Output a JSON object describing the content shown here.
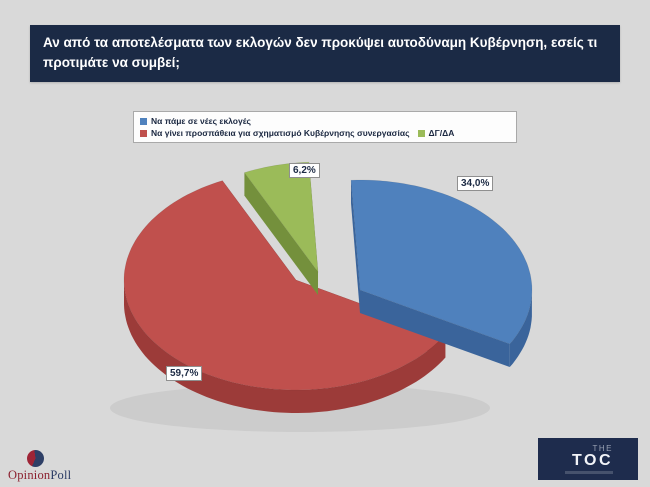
{
  "header": {
    "title": "Αν από τα αποτελέσματα των εκλογών δεν προκύψει αυτοδύναμη Κυβέρνηση, εσείς τι προτιμάτε να συμβεί;"
  },
  "chart_data": {
    "type": "pie",
    "style": "3d-exploded",
    "title": "Αν από τα αποτελέσματα των εκλογών δεν προκύψει αυτοδύναμη Κυβέρνηση, εσείς τι προτιμάτε να συμβεί;",
    "unit": "%",
    "legend_position": "top",
    "background_color": "#d9d9d9",
    "slices": [
      {
        "label": "Να πάμε σε νέες εκλογές",
        "value": 34.0,
        "display": "34,0%",
        "color": "#4f81bd",
        "side_color": "#3a649b"
      },
      {
        "label": "Να γίνει προσπάθεια για σχηματισμό Κυβέρνησης συνεργασίας",
        "value": 59.7,
        "display": "59,7%",
        "color": "#c0504d",
        "side_color": "#9c3b39"
      },
      {
        "label": "ΔΓ/ΔΑ",
        "value": 6.2,
        "display": "6,2%",
        "color": "#9bbb59",
        "side_color": "#74903c"
      }
    ]
  },
  "footer": {
    "brand_left": {
      "part1": "Opinion",
      "part2": "Poll"
    },
    "brand_right": {
      "line1": "THE",
      "line2": "TOC"
    }
  }
}
